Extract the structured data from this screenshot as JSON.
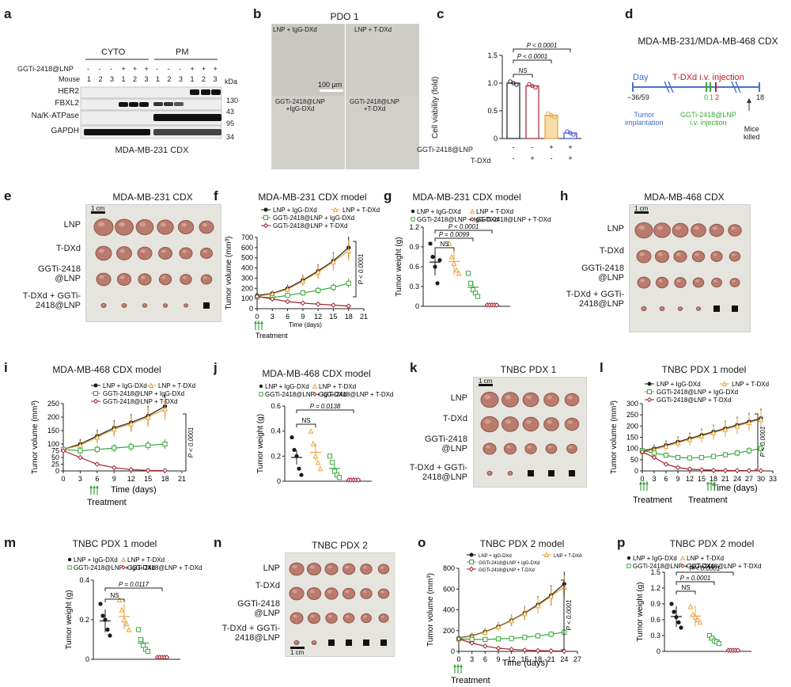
{
  "panel_letters": [
    "a",
    "b",
    "c",
    "d",
    "e",
    "f",
    "g",
    "h",
    "i",
    "j",
    "k",
    "l",
    "m",
    "n",
    "o",
    "p"
  ],
  "common": {
    "legend_lnp_igg": "LNP + IgG-DXd",
    "legend_lnp_tdxd": "LNP + T-DXd",
    "legend_ggti_igg": "GGTi-2418@LNP + IgG-DXd",
    "legend_ggti_tdxd": "GGTi-2418@LNP + T-DXd",
    "treatment": "Treatment",
    "time_days": "Time (days)",
    "tumor_volume": "Tumor volume (mm³)",
    "tumor_weight": "Tumor weight (g)",
    "ns": "NS",
    "scale_1cm": "1 cm"
  },
  "panel_a": {
    "cyto": "CYTO",
    "pm": "PM",
    "row_ggti": "GGTi-2418@LNP",
    "row_mouse": "Mouse",
    "signs": [
      "-",
      "-",
      "-",
      "+",
      "+",
      "+",
      "-",
      "-",
      "-",
      "+",
      "+",
      "+"
    ],
    "mice": [
      "1",
      "2",
      "3",
      "1",
      "2",
      "3",
      "1",
      "2",
      "3",
      "1",
      "2",
      "3"
    ],
    "kda": "kDa",
    "proteins": [
      "HER2",
      "FBXL2",
      "Na/K-ATPase",
      "GAPDH"
    ],
    "markers": [
      "130",
      "43",
      "95",
      "34"
    ],
    "caption": "MDA-MB-231 CDX"
  },
  "panel_b": {
    "title": "PDO 1",
    "labels": [
      "LNP + IgG-DXd",
      "LNP + T-DXd",
      "GGTi-2418@LNP\n+IgG-DXd",
      "GGTi-2418@LNP\n+T-DXd"
    ],
    "scale": "100 μm"
  },
  "panel_c": {
    "ylabel": "Cell viability (fold)",
    "yticks": [
      "0",
      "0.5",
      "1.0",
      "1.5"
    ],
    "p1": "P < 0.0001",
    "p2": "P < 0.0001",
    "p3": "P < 0.0001",
    "row1": "GGTi-2418@LNP",
    "row2": "T-DXd",
    "row1_signs": [
      "-",
      "-",
      "+",
      "+"
    ],
    "row2_signs": [
      "-",
      "+",
      "-",
      "+"
    ]
  },
  "panel_d": {
    "title": "MDA-MB-231/MDA-MB-468 CDX",
    "day": "Day",
    "tdxd": "T-DXd i.v. injection",
    "d1": "−36/59",
    "d2": "0",
    "d3": "1",
    "d4": "2",
    "d5": "18",
    "tumor": "Tumor\nimplantation",
    "ggti": "GGTi-2418@LNP\ni.v. injection",
    "mice": "Mice\nkilled"
  },
  "panel_e": {
    "title": "MDA-MB-231 CDX",
    "rows": [
      "LNP",
      "T-DXd",
      "GGTi-2418\n@LNP",
      "T-DXd + GGTi-\n2418@LNP"
    ]
  },
  "panel_f": {
    "title": "MDA-MB-231 CDX model",
    "p": "P < 0.0001"
  },
  "panel_g": {
    "title": "MDA-MB-231 CDX model",
    "p1": "P = 0.0099",
    "p2": "P < 0.0001"
  },
  "panel_h": {
    "title": "MDA-MB-468 CDX",
    "rows": [
      "LNP",
      "T-DXd",
      "GGTi-2418\n@LNP",
      "T-DXd + GGTi-\n2418@LNP"
    ]
  },
  "panel_i": {
    "title": "MDA-MB-468 CDX model",
    "p": "P < 0.0001"
  },
  "panel_j": {
    "title": "MDA-MB-468 CDX model",
    "p1": "P = 0.0138"
  },
  "panel_k": {
    "title": "TNBC PDX 1",
    "rows": [
      "LNP",
      "T-DXd",
      "GGTi-2418\n@LNP",
      "T-DXd + GGTi-\n2418@LNP"
    ]
  },
  "panel_l": {
    "title": "TNBC PDX 1 model",
    "p": "P < 0.0001"
  },
  "panel_m": {
    "title": "TNBC PDX 1 model",
    "p1": "P = 0.0117"
  },
  "panel_n": {
    "title": "TNBC PDX 2",
    "rows": [
      "LNP",
      "T-DXd",
      "GGTi-2418\n@LNP",
      "T-DXd + GGTi-\n2418@LNP"
    ]
  },
  "panel_o": {
    "title": "TNBC PDX 2 model",
    "p": "P < 0.0001"
  },
  "panel_p": {
    "title": "TNBC PDX 2 model",
    "p1": "P = 0.0001",
    "p2": "P < 0.0001"
  },
  "colors": {
    "black": "#1a1a1a",
    "orange": "#e8a33a",
    "green": "#3aa83a",
    "red": "#a02030",
    "blue": "#3a4ed0"
  },
  "chart_data": [
    {
      "id": "c",
      "type": "bar",
      "categories": [
        "LNP+IgG",
        "LNP+T-DXd",
        "GGTi+IgG",
        "GGTi+T-DXd"
      ],
      "values": [
        1.0,
        0.95,
        0.42,
        0.1
      ],
      "ylim": [
        0,
        1.5
      ]
    },
    {
      "id": "f",
      "type": "line",
      "x": [
        0,
        3,
        6,
        9,
        12,
        15,
        18
      ],
      "ylim": [
        0,
        700
      ],
      "xlim": [
        0,
        21
      ],
      "series": [
        {
          "name": "LNP + IgG-DXd",
          "values": [
            130,
            150,
            200,
            280,
            370,
            470,
            600
          ],
          "color": "black"
        },
        {
          "name": "LNP + T-DXd",
          "values": [
            120,
            145,
            190,
            270,
            360,
            460,
            570
          ],
          "color": "orange"
        },
        {
          "name": "GGTi-2418@LNP + IgG-DXd",
          "values": [
            115,
            110,
            130,
            155,
            180,
            210,
            250
          ],
          "color": "green"
        },
        {
          "name": "GGTi-2418@LNP + T-DXd",
          "values": [
            120,
            95,
            70,
            55,
            45,
            35,
            25
          ],
          "color": "red"
        }
      ]
    },
    {
      "id": "g",
      "type": "scatter",
      "ylim": [
        0,
        1.2
      ],
      "groups": [
        [
          0.95,
          0.75,
          0.6,
          0.35,
          0.7
        ],
        [
          0.95,
          0.75,
          0.65,
          0.55,
          0.5
        ],
        [
          0.5,
          0.35,
          0.25,
          0.2,
          0.15
        ],
        [
          0.02,
          0.02,
          0.02,
          0.02,
          0.02
        ]
      ]
    },
    {
      "id": "i",
      "type": "line",
      "x": [
        0,
        3,
        6,
        9,
        12,
        15,
        18
      ],
      "ylim": [
        0,
        250
      ],
      "xlim": [
        0,
        21
      ],
      "series": [
        {
          "name": "LNP + IgG-DXd",
          "values": [
            80,
            100,
            130,
            160,
            180,
            205,
            240
          ],
          "color": "black"
        },
        {
          "name": "LNP + T-DXd",
          "values": [
            80,
            95,
            125,
            155,
            175,
            200,
            230
          ],
          "color": "orange"
        },
        {
          "name": "GGTi-2418@LNP + IgG-DXd",
          "values": [
            80,
            75,
            80,
            85,
            90,
            95,
            100
          ],
          "color": "green"
        },
        {
          "name": "GGTi-2418@LNP + T-DXd",
          "values": [
            75,
            50,
            25,
            12,
            5,
            2,
            1
          ],
          "color": "red"
        }
      ]
    },
    {
      "id": "j",
      "type": "scatter",
      "ylim": [
        0,
        0.6
      ],
      "groups": [
        [
          0.35,
          0.25,
          0.2,
          0.1,
          0.05
        ],
        [
          0.4,
          0.3,
          0.2,
          0.15,
          0.1
        ],
        [
          0.2,
          0.15,
          0.08,
          0.05,
          0.03
        ],
        [
          0.01,
          0.01,
          0.01,
          0.01,
          0.01
        ]
      ]
    },
    {
      "id": "l",
      "type": "line",
      "x": [
        0,
        3,
        6,
        9,
        12,
        15,
        18,
        21,
        24,
        27,
        30,
        33
      ],
      "ylim": [
        0,
        300
      ],
      "xlim": [
        0,
        33
      ],
      "series": [
        {
          "name": "LNP + IgG-DXd",
          "values": [
            90,
            100,
            115,
            130,
            145,
            160,
            175,
            190,
            205,
            220,
            235,
            null
          ],
          "color": "black"
        },
        {
          "name": "LNP + T-DXd",
          "values": [
            85,
            95,
            110,
            125,
            140,
            155,
            170,
            185,
            200,
            215,
            230,
            null
          ],
          "color": "orange"
        },
        {
          "name": "GGTi-2418@LNP + IgG-DXd",
          "values": [
            90,
            80,
            70,
            60,
            58,
            60,
            65,
            72,
            80,
            90,
            100,
            null
          ],
          "color": "green"
        },
        {
          "name": "GGTi-2418@LNP + T-DXd",
          "values": [
            85,
            60,
            30,
            15,
            8,
            5,
            3,
            2,
            2,
            1,
            1,
            null
          ],
          "color": "red"
        }
      ]
    },
    {
      "id": "m",
      "type": "scatter",
      "ylim": [
        0,
        0.4
      ],
      "groups": [
        [
          0.28,
          0.22,
          0.2,
          0.15,
          0.12
        ],
        [
          0.3,
          0.25,
          0.2,
          0.18,
          0.15
        ],
        [
          0.15,
          0.1,
          0.07,
          0.05,
          0.04
        ],
        [
          0.01,
          0.01,
          0.01,
          0.01,
          0.01
        ]
      ]
    },
    {
      "id": "o",
      "type": "line",
      "x": [
        0,
        3,
        6,
        9,
        12,
        15,
        18,
        21,
        24
      ],
      "ylim": [
        0,
        800
      ],
      "xlim": [
        0,
        27
      ],
      "series": [
        {
          "name": "LNP + IgG-DXd",
          "values": [
            130,
            150,
            190,
            240,
            300,
            370,
            450,
            540,
            650
          ],
          "color": "black"
        },
        {
          "name": "LNP + T-DXd",
          "values": [
            125,
            145,
            185,
            235,
            295,
            365,
            440,
            530,
            620
          ],
          "color": "orange"
        },
        {
          "name": "GGTi-2418@LNP + IgG-DXd",
          "values": [
            120,
            115,
            115,
            120,
            125,
            135,
            150,
            165,
            185
          ],
          "color": "green"
        },
        {
          "name": "GGTi-2418@LNP + T-DXd",
          "values": [
            120,
            80,
            50,
            30,
            20,
            12,
            8,
            5,
            3
          ],
          "color": "red"
        }
      ]
    },
    {
      "id": "p",
      "type": "scatter",
      "ylim": [
        0,
        1.5
      ],
      "groups": [
        [
          0.9,
          0.75,
          0.65,
          0.55,
          0.45
        ],
        [
          0.85,
          0.7,
          0.65,
          0.6,
          0.55
        ],
        [
          0.3,
          0.25,
          0.2,
          0.18,
          0.15
        ],
        [
          0.02,
          0.02,
          0.02,
          0.02,
          0.02
        ]
      ]
    }
  ]
}
